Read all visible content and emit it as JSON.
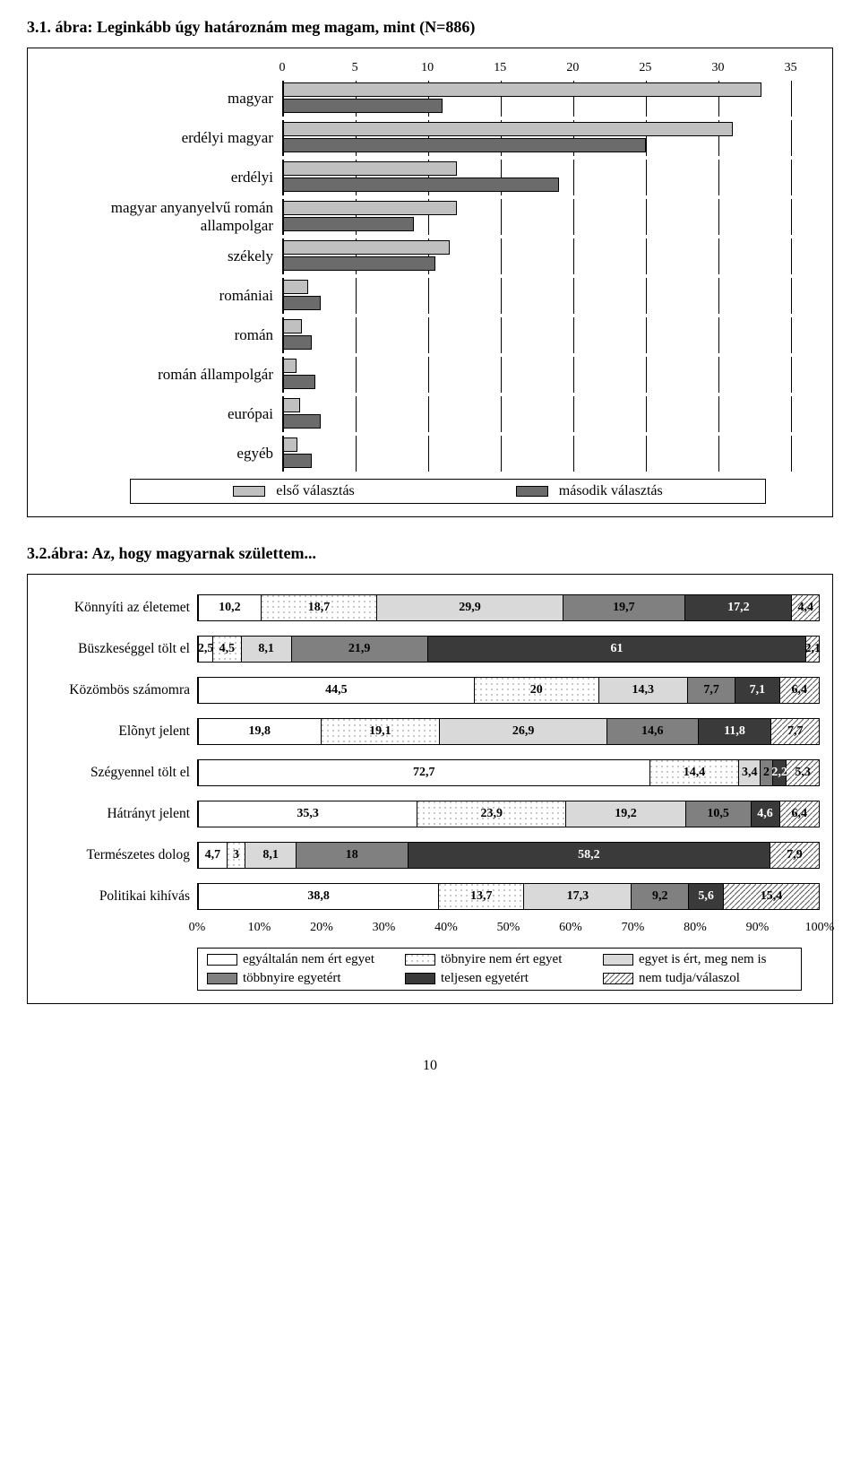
{
  "chart1": {
    "title": "3.1. ábra: Leginkább úgy határoznám meg magam, mint (N=886)",
    "type": "grouped-horizontal-bar",
    "x_ticks": [
      0,
      5,
      10,
      15,
      20,
      25,
      30,
      35
    ],
    "xlim": [
      0,
      35
    ],
    "x_max_plot": 37,
    "categories": [
      "magyar",
      "erdélyi magyar",
      "erdélyi",
      "magyar anyanyelvű román allampolgar",
      "székely",
      "romániai",
      "román",
      "román állampolgár",
      "európai",
      "egyéb"
    ],
    "series": [
      {
        "name": "első választás",
        "color": "#c0c0c0",
        "values": [
          33,
          31,
          12,
          12,
          11.5,
          1.7,
          1.3,
          0.9,
          1.2,
          1.0
        ]
      },
      {
        "name": "második választás",
        "color": "#6b6b6b",
        "values": [
          11,
          25,
          19,
          9,
          10.5,
          2.6,
          2.0,
          2.2,
          2.6,
          2.0
        ]
      }
    ],
    "border_color": "#000000",
    "label_fontsize": 17
  },
  "chart2": {
    "title": "3.2.ábra: Az, hogy magyarnak születtem...",
    "type": "stacked-horizontal-bar-percent",
    "x_ticks_pct": [
      0,
      10,
      20,
      30,
      40,
      50,
      60,
      70,
      80,
      90,
      100
    ],
    "rows": [
      {
        "label": "Könnyíti az életemet",
        "values": [
          10.2,
          18.7,
          29.9,
          19.7,
          17.2,
          4.4
        ]
      },
      {
        "label": "Büszkeséggel tölt el",
        "values": [
          2.5,
          4.5,
          8.1,
          21.9,
          61,
          2.1
        ]
      },
      {
        "label": "Közömbös számomra",
        "values": [
          44.5,
          20,
          14.3,
          7.7,
          7.1,
          6.4
        ]
      },
      {
        "label": "Elõnyt jelent",
        "values": [
          19.8,
          19.1,
          26.9,
          14.6,
          11.8,
          7.7
        ]
      },
      {
        "label": "Szégyennel tölt el",
        "values": [
          72.7,
          14.4,
          3.4,
          2,
          2.2,
          5.3
        ]
      },
      {
        "label": "Hátrányt jelent",
        "values": [
          35.3,
          23.9,
          19.2,
          10.5,
          4.6,
          6.4
        ]
      },
      {
        "label": "Természetes dolog",
        "values": [
          4.7,
          3,
          8.1,
          18,
          58.2,
          7.9
        ]
      },
      {
        "label": "Politikai kihívás",
        "values": [
          38.8,
          13.7,
          17.3,
          9.2,
          5.6,
          15.4
        ]
      }
    ],
    "segment_styles": [
      {
        "name": "egyáltalán nem ért egyet",
        "fill": "#ffffff",
        "pattern": null,
        "text": "#000000"
      },
      {
        "name": "töbnyire nem ért egyet",
        "fill": null,
        "pattern": "dots-lt",
        "text": "#000000"
      },
      {
        "name": "egyet is ért, meg nem is",
        "fill": "#d9d9d9",
        "pattern": null,
        "text": "#000000"
      },
      {
        "name": "többnyire egyetért",
        "fill": "#808080",
        "pattern": null,
        "text": "#000000"
      },
      {
        "name": "teljesen egyetért",
        "fill": "#3a3a3a",
        "pattern": null,
        "text": "#ffffff"
      },
      {
        "name": "nem tudja/válaszol",
        "fill": null,
        "pattern": "hatch",
        "text": "#000000"
      }
    ],
    "label_fontsize": 15.5
  },
  "page_number": "10"
}
